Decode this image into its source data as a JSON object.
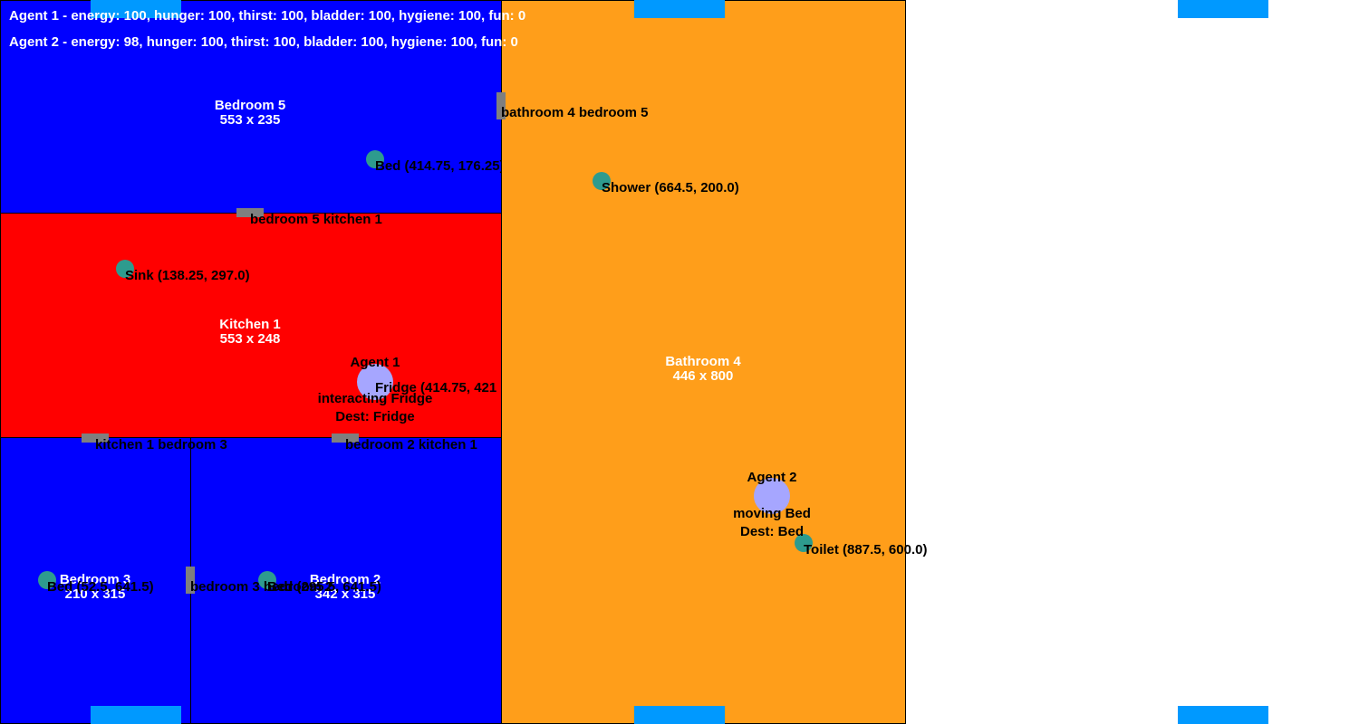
{
  "status": {
    "agent1": "Agent 1 - energy: 100, hunger: 100, thirst: 100, bladder: 100, hygiene: 100, fun: 0",
    "agent2": "Agent 2 - energy: 98, hunger: 100, thirst: 100, bladder: 100, hygiene: 100, fun: 0"
  },
  "colors": {
    "bedroom": "#0000ff",
    "kitchen": "#ff0000",
    "bathroom": "#ff9e1a",
    "object": "#2e9b8e",
    "agent": "#a6a6ff",
    "door": "#7f7f7f",
    "window": "#0099ff"
  },
  "rooms": {
    "bedroom5": {
      "name": "Bedroom 5",
      "size": "553 x 235"
    },
    "kitchen1": {
      "name": "Kitchen 1",
      "size": "553 x 248"
    },
    "bedroom3": {
      "name": "Bedroom 3",
      "size": "210 x 315"
    },
    "bedroom2": {
      "name": "Bedroom 2",
      "size": "342 x 315"
    },
    "bathroom4": {
      "name": "Bathroom 4",
      "size": "446 x 800"
    }
  },
  "doors": {
    "bathroom4_bedroom5": "bathroom 4 bedroom 5",
    "bedroom5_kitchen1": "bedroom 5 kitchen 1",
    "kitchen1_bedroom3": "kitchen 1 bedroom 3",
    "bedroom2_kitchen1": "bedroom 2 kitchen 1",
    "bedroom3_bedroom2": "bedroom 3 bedroom 2"
  },
  "objects": {
    "bed5": "Bed (414.75, 176.25)",
    "shower": "Shower (664.5, 200.0)",
    "sink": "Sink (138.25, 297.0)",
    "fridge": "Fridge (414.75, 421",
    "bed3": "Bed (52.5, 641.5)",
    "bed2": "Bed (295.5, 641.5)",
    "toilet": "Toilet (887.5, 600.0)"
  },
  "agents": {
    "agent1": {
      "name": "Agent 1",
      "state": "interacting Fridge",
      "dest": "Dest: Fridge"
    },
    "agent2": {
      "name": "Agent 2",
      "state": "moving Bed",
      "dest": "Dest: Bed"
    }
  }
}
